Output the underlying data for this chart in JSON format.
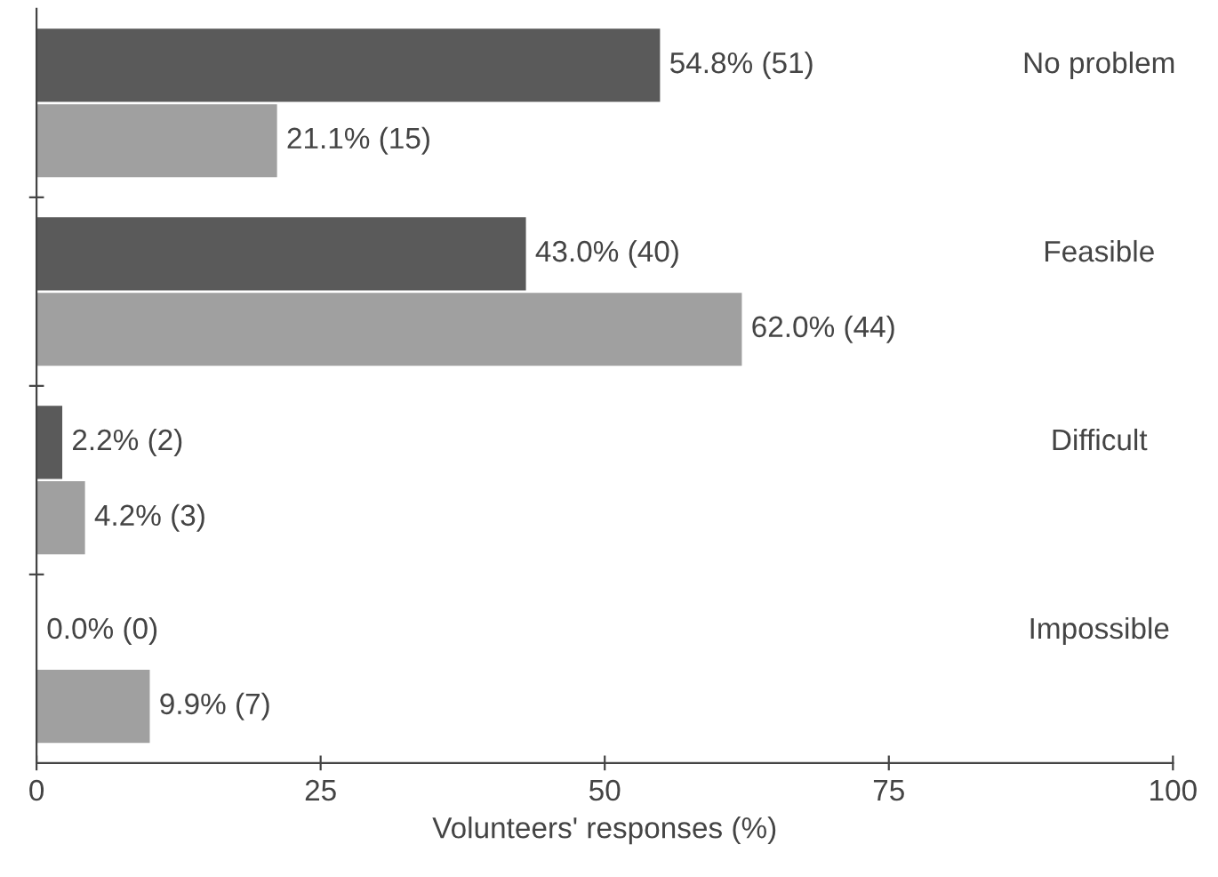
{
  "chart_data": {
    "type": "bar",
    "orientation": "horizontal",
    "xlabel": "Volunteers' responses (%)",
    "categories": [
      "No problem",
      "Feasible",
      "Difficult",
      "Impossible"
    ],
    "series": [
      {
        "color": "#5a5a5a",
        "values": [
          54.8,
          43.0,
          2.2,
          0.0
        ],
        "value_labels": [
          "54.8% (51)",
          "43.0% (40)",
          "2.2% (2)",
          "0.0% (0)"
        ]
      },
      {
        "color": "#a0a0a0",
        "values": [
          21.1,
          62.0,
          4.2,
          9.9
        ],
        "value_labels": [
          "21.1% (15)",
          "62.0% (44)",
          "4.2% (3)",
          "9.9% (7)"
        ]
      }
    ],
    "xlim": [
      0,
      100
    ],
    "xticks": [
      0,
      25,
      50,
      75,
      100
    ],
    "grid": false,
    "legend": false
  }
}
